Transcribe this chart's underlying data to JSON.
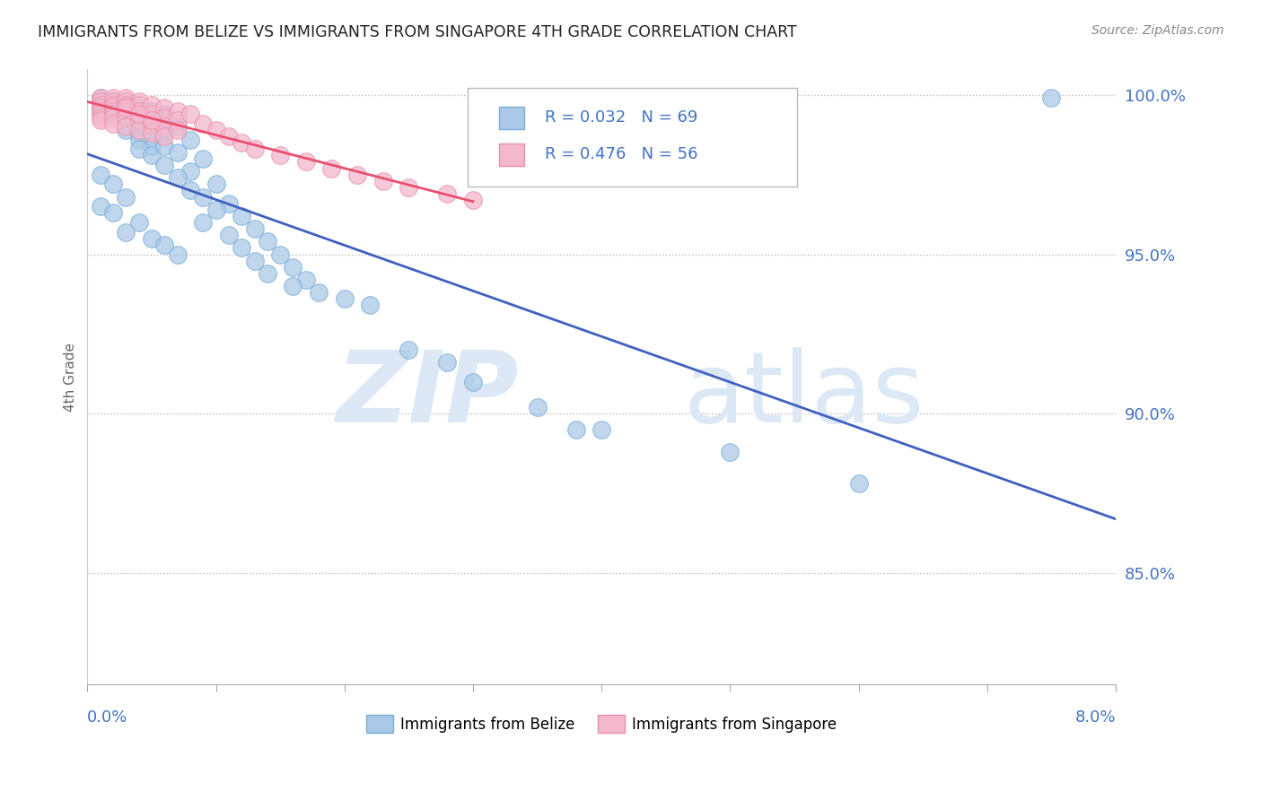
{
  "title": "IMMIGRANTS FROM BELIZE VS IMMIGRANTS FROM SINGAPORE 4TH GRADE CORRELATION CHART",
  "source": "Source: ZipAtlas.com",
  "ylabel": "4th Grade",
  "xmin": 0.0,
  "xmax": 0.08,
  "ymin": 0.815,
  "ymax": 1.008,
  "yticks": [
    0.85,
    0.9,
    0.95,
    1.0
  ],
  "ytick_labels": [
    "85.0%",
    "90.0%",
    "95.0%",
    "100.0%"
  ],
  "legend_r1": "R = 0.032",
  "legend_n1": "N = 69",
  "legend_r2": "R = 0.476",
  "legend_n2": "N = 56",
  "series1_color": "#aac9e8",
  "series1_edge": "#7aadd4",
  "series2_color": "#f4b8cc",
  "series2_edge": "#e890aa",
  "trend1_color": "#4060c0",
  "trend2_color": "#e85070",
  "belize_x": [
    0.001,
    0.002,
    0.001,
    0.003,
    0.002,
    0.004,
    0.003,
    0.005,
    0.004,
    0.002,
    0.006,
    0.003,
    0.005,
    0.004,
    0.006,
    0.003,
    0.005,
    0.004,
    0.007,
    0.005,
    0.006,
    0.004,
    0.008,
    0.005,
    0.006,
    0.007,
    0.009,
    0.006,
    0.008,
    0.007,
    0.01,
    0.008,
    0.009,
    0.011,
    0.01,
    0.012,
    0.009,
    0.013,
    0.011,
    0.014,
    0.012,
    0.015,
    0.013,
    0.016,
    0.014,
    0.017,
    0.016,
    0.018,
    0.02,
    0.022,
    0.001,
    0.002,
    0.003,
    0.001,
    0.002,
    0.004,
    0.003,
    0.005,
    0.006,
    0.007,
    0.025,
    0.03,
    0.035,
    0.028,
    0.04,
    0.06,
    0.05,
    0.075,
    0.038
  ],
  "belize_y": [
    0.999,
    0.998,
    0.996,
    0.997,
    0.995,
    0.996,
    0.993,
    0.995,
    0.992,
    0.994,
    0.994,
    0.991,
    0.99,
    0.988,
    0.992,
    0.989,
    0.987,
    0.986,
    0.99,
    0.984,
    0.988,
    0.983,
    0.986,
    0.981,
    0.984,
    0.982,
    0.98,
    0.978,
    0.976,
    0.974,
    0.972,
    0.97,
    0.968,
    0.966,
    0.964,
    0.962,
    0.96,
    0.958,
    0.956,
    0.954,
    0.952,
    0.95,
    0.948,
    0.946,
    0.944,
    0.942,
    0.94,
    0.938,
    0.936,
    0.934,
    0.975,
    0.972,
    0.968,
    0.965,
    0.963,
    0.96,
    0.957,
    0.955,
    0.953,
    0.95,
    0.92,
    0.91,
    0.902,
    0.916,
    0.895,
    0.878,
    0.888,
    0.999,
    0.895
  ],
  "singapore_x": [
    0.001,
    0.001,
    0.001,
    0.002,
    0.001,
    0.002,
    0.001,
    0.002,
    0.003,
    0.001,
    0.002,
    0.003,
    0.001,
    0.002,
    0.003,
    0.001,
    0.002,
    0.003,
    0.004,
    0.002,
    0.003,
    0.004,
    0.002,
    0.003,
    0.004,
    0.005,
    0.003,
    0.004,
    0.005,
    0.006,
    0.004,
    0.005,
    0.006,
    0.007,
    0.005,
    0.006,
    0.007,
    0.008,
    0.006,
    0.007,
    0.009,
    0.01,
    0.011,
    0.012,
    0.013,
    0.015,
    0.017,
    0.019,
    0.021,
    0.023,
    0.025,
    0.028,
    0.03,
    0.003,
    0.004,
    0.005
  ],
  "singapore_y": [
    0.999,
    0.998,
    0.997,
    0.999,
    0.996,
    0.998,
    0.995,
    0.997,
    0.999,
    0.994,
    0.996,
    0.998,
    0.993,
    0.995,
    0.997,
    0.992,
    0.994,
    0.996,
    0.998,
    0.993,
    0.995,
    0.997,
    0.991,
    0.993,
    0.995,
    0.997,
    0.99,
    0.992,
    0.994,
    0.996,
    0.989,
    0.991,
    0.993,
    0.995,
    0.988,
    0.99,
    0.992,
    0.994,
    0.987,
    0.989,
    0.991,
    0.989,
    0.987,
    0.985,
    0.983,
    0.981,
    0.979,
    0.977,
    0.975,
    0.973,
    0.971,
    0.969,
    0.967,
    0.996,
    0.994,
    0.992
  ]
}
